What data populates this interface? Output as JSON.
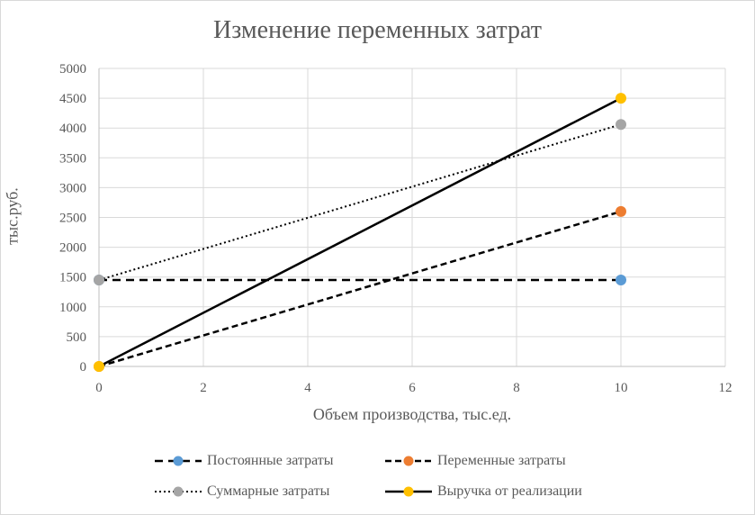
{
  "chart_data": {
    "type": "line",
    "title": "Изменение переменных затрат",
    "xlabel": "Объем производства, тыс.ед.",
    "ylabel": "тыс.руб.",
    "xlim": [
      0,
      12
    ],
    "ylim": [
      0,
      5000
    ],
    "x_ticks": [
      "0",
      "2",
      "4",
      "6",
      "8",
      "10",
      "12"
    ],
    "y_ticks": [
      "0",
      "500",
      "1000",
      "1500",
      "2000",
      "2500",
      "3000",
      "3500",
      "4000",
      "4500",
      "5000"
    ],
    "grid": true,
    "legend_position": "bottom",
    "series": [
      {
        "name": "Постоянные затраты",
        "x": [
          0,
          10
        ],
        "y": [
          1450,
          1450
        ],
        "line_style": "dashed",
        "marker_color": "#5b9bd5"
      },
      {
        "name": "Переменные затраты",
        "x": [
          0,
          10
        ],
        "y": [
          0,
          2600
        ],
        "line_style": "dashed",
        "marker_color": "#ed7d31"
      },
      {
        "name": "Суммарные затраты",
        "x": [
          0,
          10
        ],
        "y": [
          1450,
          4060
        ],
        "line_style": "dotted",
        "marker_color": "#a5a5a5"
      },
      {
        "name": "Выручка от реализации",
        "x": [
          0,
          10
        ],
        "y": [
          0,
          4500
        ],
        "line_style": "solid",
        "marker_color": "#ffc000"
      }
    ]
  }
}
